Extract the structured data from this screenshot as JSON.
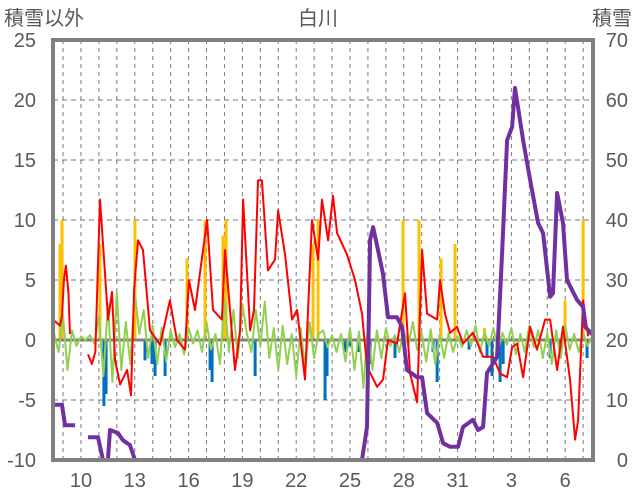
{
  "chart_data": {
    "type": "line",
    "title": "白川",
    "left_axis_title": "積雪以外",
    "right_axis_title": "積雪",
    "ylim_left": [
      -10,
      25
    ],
    "ylim_right": [
      0,
      70
    ],
    "xlim": [
      8.44,
      38.55
    ],
    "yticks_left": [
      "-10",
      "-5",
      "0",
      "5",
      "10",
      "15",
      "20",
      "25"
    ],
    "yticks_right": [
      "0",
      "10",
      "20",
      "30",
      "40",
      "50",
      "60",
      "70"
    ],
    "xticks": [
      {
        "day": 10,
        "label": "10"
      },
      {
        "day": 13,
        "label": "13"
      },
      {
        "day": 16,
        "label": "16"
      },
      {
        "day": 19,
        "label": "19"
      },
      {
        "day": 22,
        "label": "22"
      },
      {
        "day": 25,
        "label": "25"
      },
      {
        "day": 28,
        "label": "28"
      },
      {
        "day": 31,
        "label": "31"
      },
      {
        "day": 34,
        "label": "3"
      },
      {
        "day": 37,
        "label": "6"
      }
    ],
    "grid": true,
    "colors": {
      "temperature": "#ff0000",
      "precip": "#ffc000",
      "negative": "#0070c0",
      "change": "#92d050",
      "snow": "#7030a0",
      "axis": "#808080",
      "grid": "#595959"
    },
    "series": {
      "temperature": [
        [
          8.44,
          1.7
        ],
        [
          8.83,
          1.2
        ],
        [
          8.94,
          2
        ],
        [
          9.05,
          5
        ],
        [
          9.16,
          6.2
        ],
        [
          9.3,
          4
        ],
        [
          9.39,
          0.5
        ],
        null,
        [
          10.39,
          -1.2
        ],
        [
          10.61,
          -2
        ],
        [
          10.8,
          -1
        ],
        [
          11.06,
          11.7
        ],
        [
          11.23,
          8
        ],
        [
          11.51,
          1.7
        ],
        [
          11.73,
          4
        ],
        [
          11.9,
          -1.7
        ],
        [
          12.18,
          -3.7
        ],
        [
          12.57,
          -2.5
        ],
        [
          12.79,
          -4.6
        ],
        [
          12.96,
          4.2
        ],
        [
          13.18,
          8.3
        ],
        [
          13.46,
          7.5
        ],
        [
          13.85,
          0.8
        ],
        [
          14.41,
          -0.4
        ],
        [
          14.96,
          3.3
        ],
        [
          15.35,
          0
        ],
        [
          15.8,
          -0.8
        ],
        [
          16.02,
          5
        ],
        [
          16.36,
          2.5
        ],
        [
          17.03,
          10
        ],
        [
          17.36,
          2.5
        ],
        [
          17.86,
          1.7
        ],
        [
          18.03,
          7.5
        ],
        [
          18.59,
          -2.5
        ],
        [
          18.87,
          0.8
        ],
        [
          19.04,
          11.7
        ],
        [
          19.43,
          0.8
        ],
        [
          19.65,
          2.5
        ],
        [
          19.87,
          13.3
        ],
        [
          20.09,
          13.3
        ],
        [
          20.43,
          5.8
        ],
        [
          20.82,
          6.7
        ],
        [
          20.99,
          10.8
        ],
        [
          21.38,
          7.1
        ],
        [
          21.77,
          1.7
        ],
        [
          22.05,
          2.5
        ],
        [
          22.49,
          -3.3
        ],
        [
          22.88,
          10
        ],
        [
          23.22,
          6.7
        ],
        [
          23.44,
          11.7
        ],
        [
          23.78,
          8.3
        ],
        [
          24.05,
          12
        ],
        [
          24.28,
          8.9
        ],
        [
          24.84,
          7.1
        ],
        [
          25.28,
          5
        ],
        [
          25.67,
          2.2
        ],
        [
          25.95,
          -2.2
        ],
        [
          26.51,
          -3.9
        ],
        [
          26.84,
          -3.3
        ],
        [
          27.12,
          0
        ],
        [
          27.62,
          -0.3
        ],
        [
          28.07,
          3.9
        ],
        [
          28.35,
          -2.8
        ],
        [
          28.74,
          -5.2
        ],
        [
          29.02,
          7.5
        ],
        [
          29.3,
          2.2
        ],
        [
          29.86,
          1.7
        ],
        [
          30.02,
          5
        ],
        [
          30.3,
          2.2
        ],
        [
          30.58,
          0.6
        ],
        [
          30.97,
          1.1
        ],
        [
          31.3,
          -0.3
        ],
        [
          31.86,
          0.6
        ],
        [
          32.42,
          -1.4
        ],
        [
          32.98,
          -1.4
        ],
        [
          33.37,
          -2.8
        ],
        [
          33.76,
          -3.1
        ],
        [
          34.04,
          -0.6
        ],
        [
          34.32,
          -0.3
        ],
        [
          34.65,
          -3.1
        ],
        [
          35.04,
          1.1
        ],
        [
          35.43,
          -0.8
        ],
        [
          35.88,
          1.7
        ],
        [
          36.16,
          1.7
        ],
        [
          36.55,
          -2.5
        ],
        [
          36.88,
          1.1
        ],
        [
          37.27,
          -3.3
        ],
        [
          37.55,
          -8.3
        ],
        [
          37.72,
          -6.7
        ],
        [
          38.0,
          3.3
        ],
        [
          38.28,
          0.3
        ]
      ],
      "snow_depth": [
        [
          8.44,
          9.2
        ],
        [
          8.94,
          9.2
        ],
        [
          9.11,
          5.8
        ],
        [
          9.67,
          5.8
        ],
        null,
        [
          10.39,
          3.8
        ],
        [
          10.95,
          3.8
        ],
        [
          11.23,
          0
        ],
        [
          11.5,
          0
        ],
        [
          11.62,
          5
        ],
        [
          12.06,
          4.5
        ],
        [
          12.34,
          3.3
        ],
        [
          12.73,
          2.5
        ],
        [
          13.01,
          0
        ],
        [
          25.67,
          0
        ],
        [
          25.95,
          5.5
        ],
        [
          26.12,
          36.7
        ],
        [
          26.29,
          38.8
        ],
        [
          26.56,
          35
        ],
        [
          26.84,
          31
        ],
        [
          27.12,
          23.8
        ],
        [
          27.62,
          23.8
        ],
        [
          27.9,
          22.2
        ],
        [
          28.18,
          15
        ],
        [
          28.74,
          13.8
        ],
        [
          29.02,
          13.8
        ],
        [
          29.3,
          7.8
        ],
        [
          29.86,
          6.2
        ],
        [
          30.19,
          2.8
        ],
        [
          30.58,
          2.2
        ],
        [
          31.03,
          2.2
        ],
        [
          31.3,
          5.5
        ],
        [
          31.86,
          6.7
        ],
        [
          32.14,
          5
        ],
        [
          32.42,
          5.5
        ],
        [
          32.64,
          14.5
        ],
        [
          33.2,
          17.2
        ],
        [
          33.48,
          34.5
        ],
        [
          33.76,
          53.3
        ],
        [
          34.04,
          55.5
        ],
        [
          34.2,
          62
        ],
        [
          34.37,
          58.8
        ],
        [
          34.65,
          53.3
        ],
        [
          35.04,
          46.7
        ],
        [
          35.49,
          39.5
        ],
        [
          35.77,
          37.8
        ],
        [
          36.16,
          27.2
        ],
        [
          36.32,
          27.8
        ],
        [
          36.55,
          44.5
        ],
        [
          36.88,
          39.5
        ],
        [
          37.1,
          30
        ],
        [
          37.66,
          26.7
        ],
        [
          38.0,
          25.5
        ],
        [
          38.11,
          22.2
        ],
        [
          38.55,
          20.8
        ]
      ],
      "precipitation": [
        [
          8.83,
          8
        ],
        [
          8.94,
          10
        ],
        [
          11.06,
          8
        ],
        [
          13.01,
          10
        ],
        [
          15.91,
          6.8
        ],
        [
          16.92,
          10
        ],
        [
          17.92,
          8.7
        ],
        [
          18.09,
          10
        ],
        [
          22.94,
          8
        ],
        [
          23.22,
          10
        ],
        [
          27.96,
          10
        ],
        [
          28.85,
          10
        ],
        [
          30.08,
          6.8
        ],
        [
          30.86,
          8
        ],
        [
          32.5,
          1
        ],
        [
          36.99,
          3.3
        ],
        [
          38.0,
          10
        ]
      ],
      "negative_bars": [
        [
          11.28,
          -5.5
        ],
        [
          11.4,
          -4.5
        ],
        [
          13.57,
          -1.7
        ],
        [
          13.96,
          -2
        ],
        [
          14.13,
          -3
        ],
        [
          14.69,
          -3
        ],
        [
          17.2,
          -2.5
        ],
        [
          17.31,
          -3.5
        ],
        [
          19.71,
          -3
        ],
        [
          23.61,
          -5
        ],
        [
          23.72,
          -3
        ],
        [
          24.73,
          -1
        ],
        [
          25.0,
          -0.5
        ],
        [
          25.45,
          -1
        ],
        [
          26.12,
          -2
        ],
        [
          27.51,
          -1.5
        ],
        [
          29.63,
          -1
        ],
        [
          29.86,
          -3.5
        ],
        [
          31.64,
          -0.8
        ],
        [
          32.64,
          -1.5
        ],
        [
          32.92,
          -3
        ],
        [
          33.37,
          -3.5
        ],
        [
          33.54,
          -2
        ],
        [
          36.16,
          -1.5
        ],
        [
          36.72,
          -1
        ],
        [
          38.22,
          -1.5
        ]
      ],
      "change_start": 8.5,
      "change_step": 0.25,
      "change": [
        0.5,
        -1,
        2,
        -2.5,
        0.8,
        -0.5,
        0.3,
        0,
        0.4,
        -0.3,
        2,
        -3,
        3,
        -3.5,
        4,
        -2.5,
        1.5,
        -2,
        4,
        0.5,
        2.5,
        -1.5,
        1.2,
        -2,
        1,
        -1.8,
        0.8,
        -0.6,
        0.5,
        -1.2,
        1,
        -0.3,
        0.8,
        -1,
        1.5,
        -0.8,
        0.5,
        -2,
        3.5,
        -1,
        2.5,
        -1.5,
        3,
        0.5,
        -1,
        2.5,
        -0.5,
        3.2,
        -1.5,
        1,
        -2.5,
        1.2,
        -2,
        0.5,
        -3,
        1,
        -2.5,
        1.5,
        -1.5,
        0.5,
        0.8,
        -0.6,
        0.4,
        -1,
        0.5,
        -1.8,
        1,
        -2.5,
        0.7,
        -4,
        1.2,
        -2.5,
        0.8,
        -1.5,
        1,
        -0.5,
        0.4,
        -1,
        0.8,
        -0.5,
        1.5,
        -0.8,
        0.6,
        -1.8,
        0.9,
        -2,
        0.5,
        -1.5,
        0.6,
        -1,
        0.3,
        -0.6,
        0.8,
        -0.5,
        1.2,
        -1,
        0.7,
        -0.5,
        1,
        -0.8,
        0.6,
        -0.4,
        1,
        -1.2,
        0.5,
        -1,
        1.2,
        -0.6,
        0.8,
        -1.5,
        0.6,
        -2,
        0.8,
        -1.5,
        1.2,
        -0.8,
        0.5,
        -1,
        0.6,
        -0.5,
        0.3
      ]
    }
  }
}
